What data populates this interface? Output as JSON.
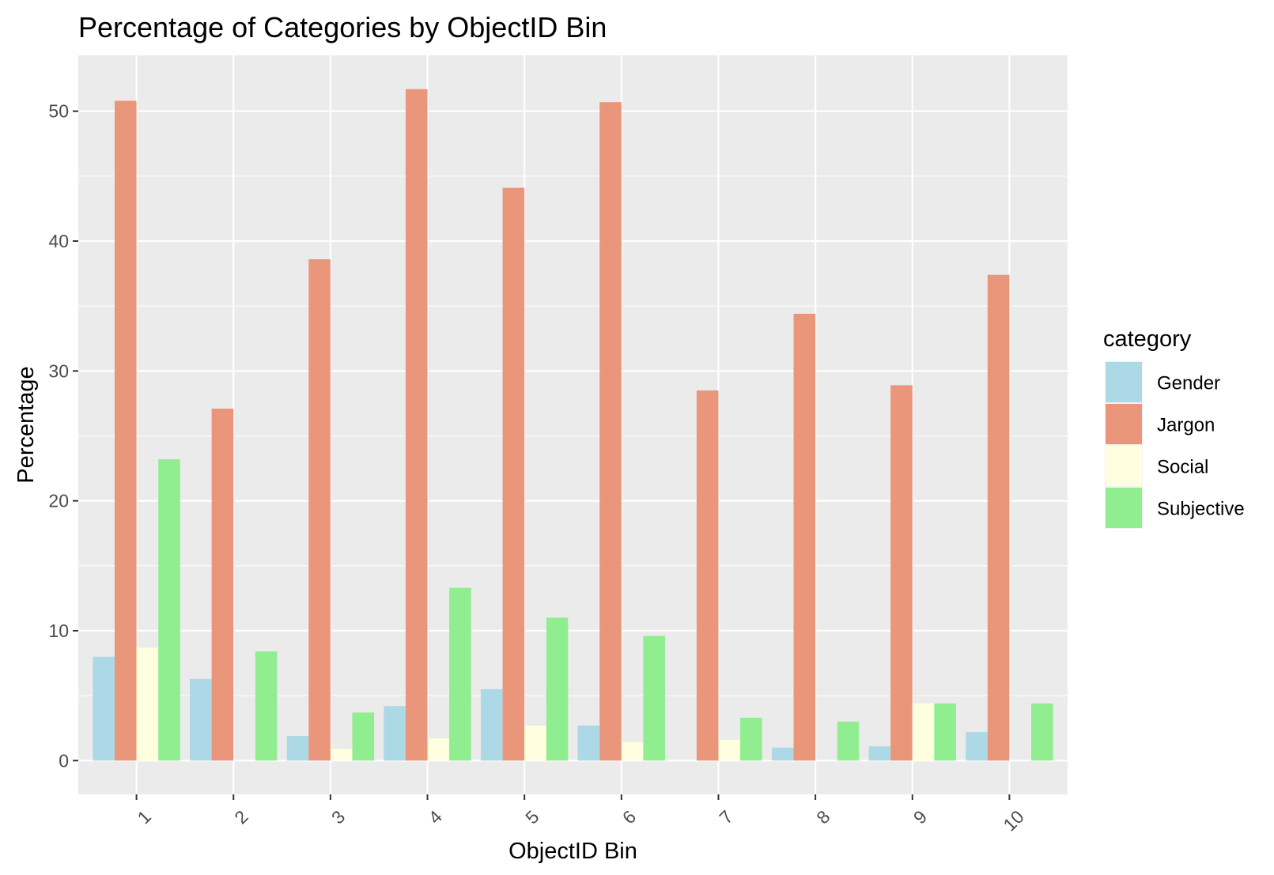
{
  "chart_data": {
    "type": "bar",
    "title": "Percentage of Categories by ObjectID Bin",
    "xlabel": "ObjectID Bin",
    "ylabel": "Percentage",
    "categories": [
      "1",
      "2",
      "3",
      "4",
      "5",
      "6",
      "7",
      "8",
      "9",
      "10"
    ],
    "series": [
      {
        "name": "Gender",
        "color": "#add8e6",
        "values": [
          8.0,
          6.3,
          1.9,
          4.2,
          5.5,
          2.7,
          0,
          1.0,
          1.1,
          2.2
        ]
      },
      {
        "name": "Jargon",
        "color": "#e9967a",
        "values": [
          50.8,
          27.1,
          38.6,
          51.7,
          44.1,
          50.7,
          28.5,
          34.4,
          28.9,
          37.4
        ]
      },
      {
        "name": "Social",
        "color": "#ffffe0",
        "values": [
          8.7,
          0,
          0.9,
          1.7,
          2.7,
          1.4,
          1.6,
          0,
          4.4,
          0
        ]
      },
      {
        "name": "Subjective",
        "color": "#90ee90",
        "values": [
          23.2,
          8.4,
          3.7,
          13.3,
          11.0,
          9.6,
          3.3,
          3.0,
          4.4,
          4.4
        ]
      }
    ],
    "ylim": [
      -2.6,
      54.3
    ],
    "y_ticks": [
      0,
      10,
      20,
      30,
      40,
      50
    ],
    "x_tick_rotation": "45 degrees",
    "grid": true,
    "legend": {
      "title": "category",
      "placement": "right"
    },
    "panel_background": "#ebebeb",
    "gridline_color": "#ffffff"
  }
}
